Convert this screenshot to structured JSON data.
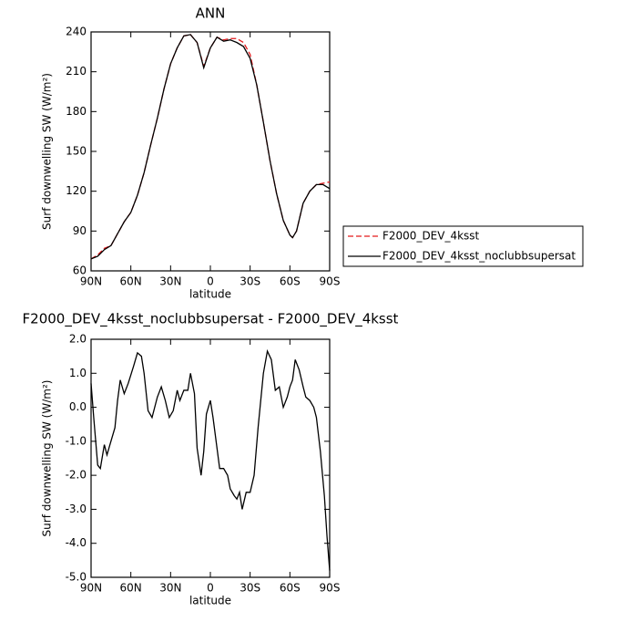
{
  "chart_data": [
    {
      "type": "line",
      "title": "ANN",
      "xlabel": "latitude",
      "ylabel": "Surf downwelling SW (W/m²)",
      "legend": "right",
      "x": [
        90,
        85,
        80,
        75,
        70,
        65,
        60,
        55,
        50,
        45,
        40,
        35,
        30,
        25,
        20,
        15,
        10,
        5,
        0,
        -5,
        -10,
        -15,
        -20,
        -25,
        -30,
        -35,
        -40,
        -45,
        -50,
        -55,
        -60,
        -62,
        -65,
        -70,
        -75,
        -80,
        -85,
        -90
      ],
      "xlim": [
        90,
        -90
      ],
      "xticks": [
        {
          "value": 90,
          "label": "90N"
        },
        {
          "value": 60,
          "label": "60N"
        },
        {
          "value": 30,
          "label": "30N"
        },
        {
          "value": 0,
          "label": "0"
        },
        {
          "value": -30,
          "label": "30S"
        },
        {
          "value": -60,
          "label": "60S"
        },
        {
          "value": -90,
          "label": "90S"
        }
      ],
      "ylim": [
        60,
        240
      ],
      "yticks": [
        60,
        90,
        120,
        150,
        180,
        210,
        240
      ],
      "series": [
        {
          "name": "F2000_DEV_4ksst",
          "color": "#e41a1c",
          "dash": true,
          "values": [
            69,
            72,
            77,
            79,
            88,
            97,
            104,
            117,
            134,
            155,
            175,
            197,
            216,
            228,
            237,
            238,
            232,
            214,
            228,
            236,
            234,
            235,
            235,
            232,
            223,
            200,
            172,
            143,
            118,
            98,
            87,
            85,
            90,
            111,
            120,
            125,
            126,
            127
          ]
        },
        {
          "name": "F2000_DEV_4ksst_noclubbsupersat",
          "color": "#000000",
          "dash": false,
          "values": [
            69,
            71,
            76,
            79,
            88,
            97,
            104,
            117,
            134,
            155,
            175,
            197,
            216,
            228,
            237,
            238,
            232,
            213,
            228,
            236,
            233,
            234,
            232,
            229,
            220,
            200,
            172,
            143,
            118,
            98,
            87,
            85,
            90,
            111,
            120,
            125,
            125,
            122
          ]
        }
      ]
    },
    {
      "type": "line",
      "title": "F2000_DEV_4ksst_noclubbsupersat - F2000_DEV_4ksst",
      "xlabel": "latitude",
      "ylabel": "Surf downwelling SW (W/m²)",
      "x": [
        90,
        88,
        85,
        83,
        80,
        78,
        75,
        72,
        70,
        68,
        65,
        62,
        58,
        55,
        52,
        50,
        47,
        44,
        40,
        37,
        34,
        31,
        28,
        25,
        23,
        20,
        17,
        15,
        12,
        10,
        7,
        5,
        3,
        0,
        -2,
        -5,
        -7,
        -10,
        -13,
        -15,
        -18,
        -20,
        -22,
        -24,
        -27,
        -30,
        -33,
        -36,
        -40,
        -43,
        -46,
        -49,
        -52,
        -55,
        -58,
        -60,
        -62,
        -64,
        -67,
        -70,
        -72,
        -75,
        -78,
        -80,
        -83,
        -86,
        -88,
        -90
      ],
      "xlim": [
        90,
        -90
      ],
      "xticks": [
        {
          "value": 90,
          "label": "90N"
        },
        {
          "value": 60,
          "label": "60N"
        },
        {
          "value": 30,
          "label": "30N"
        },
        {
          "value": 0,
          "label": "0"
        },
        {
          "value": -30,
          "label": "30S"
        },
        {
          "value": -60,
          "label": "60S"
        },
        {
          "value": -90,
          "label": "90S"
        }
      ],
      "ylim": [
        -5,
        2
      ],
      "yticks": [
        {
          "value": 2,
          "label": "2.0"
        },
        {
          "value": 1,
          "label": "1.0"
        },
        {
          "value": 0,
          "label": "0.0"
        },
        {
          "value": -1,
          "label": "-1.0"
        },
        {
          "value": -2,
          "label": "-2.0"
        },
        {
          "value": -3,
          "label": "-3.0"
        },
        {
          "value": -4,
          "label": "-4.0"
        },
        {
          "value": -5,
          "label": "-5.0"
        }
      ],
      "series": [
        {
          "color": "#000000",
          "dash": false,
          "values": [
            0.7,
            -0.3,
            -1.7,
            -1.8,
            -1.1,
            -1.4,
            -1.0,
            -0.6,
            0.2,
            0.8,
            0.4,
            0.7,
            1.2,
            1.6,
            1.5,
            1.0,
            -0.1,
            -0.3,
            0.3,
            0.6,
            0.2,
            -0.3,
            -0.1,
            0.5,
            0.2,
            0.5,
            0.5,
            1.0,
            0.4,
            -1.2,
            -2.0,
            -1.3,
            -0.2,
            0.2,
            -0.3,
            -1.2,
            -1.8,
            -1.8,
            -2.0,
            -2.4,
            -2.6,
            -2.7,
            -2.5,
            -3.0,
            -2.5,
            -2.5,
            -2.0,
            -0.6,
            1.0,
            1.65,
            1.4,
            0.5,
            0.6,
            0.0,
            0.3,
            0.6,
            0.8,
            1.4,
            1.1,
            0.6,
            0.3,
            0.2,
            0.0,
            -0.3,
            -1.3,
            -2.6,
            -3.8,
            -4.8
          ]
        }
      ]
    }
  ]
}
